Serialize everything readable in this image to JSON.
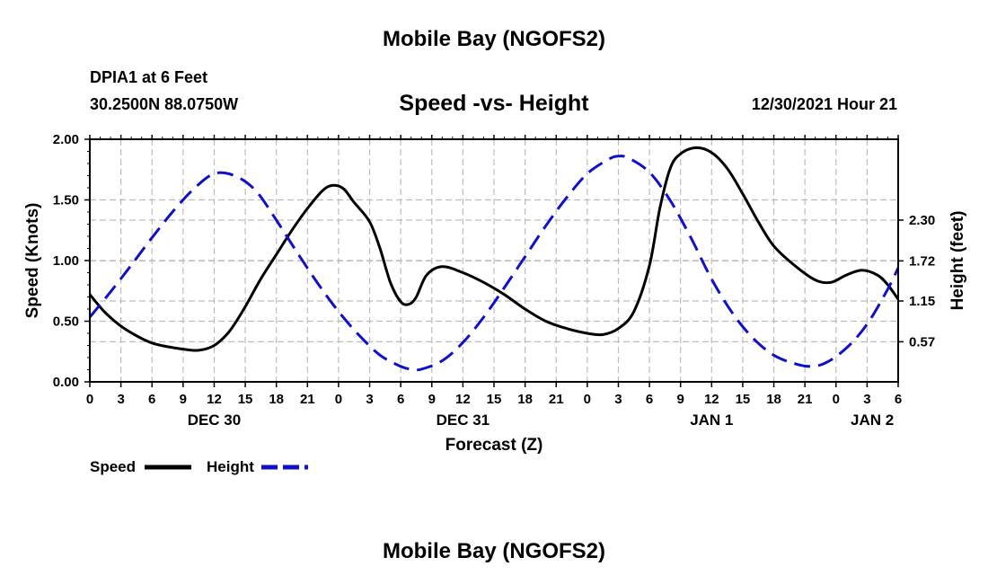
{
  "page": {
    "title_top": "Mobile Bay (NGOFS2)",
    "title_bottom": "Mobile Bay (NGOFS2)",
    "station": "DPIA1 at 6 Feet",
    "coordinates": "30.2500N  88.0750W",
    "subtitle": "Speed -vs- Height",
    "datetime": "12/30/2021 Hour 21"
  },
  "chart_data": {
    "type": "line",
    "title": "Speed -vs- Height",
    "xlabel": "Forecast (Z)",
    "ylabel": "Speed (Knots)",
    "y2label": "Height (feet)",
    "xlim": [
      0,
      78
    ],
    "ylim": [
      0,
      2.0
    ],
    "y2lim": [
      0,
      3.45
    ],
    "x_ticks": [
      0,
      3,
      6,
      9,
      12,
      15,
      18,
      21,
      24,
      27,
      30,
      33,
      36,
      39,
      42,
      45,
      48,
      51,
      54,
      57,
      60,
      63,
      66,
      69,
      72,
      75,
      78
    ],
    "x_tick_labels": [
      "0",
      "3",
      "6",
      "9",
      "12",
      "15",
      "18",
      "21",
      "0",
      "3",
      "6",
      "9",
      "12",
      "15",
      "18",
      "21",
      "0",
      "3",
      "6",
      "9",
      "12",
      "15",
      "18",
      "21",
      "0",
      "3",
      "6"
    ],
    "date_labels": [
      {
        "x": 12,
        "label": "DEC 30"
      },
      {
        "x": 36,
        "label": "DEC 31"
      },
      {
        "x": 60,
        "label": "JAN 1"
      },
      {
        "x": 75.5,
        "label": "JAN 2"
      }
    ],
    "y_ticks": [
      0.0,
      0.5,
      1.0,
      1.5,
      2.0
    ],
    "y_tick_labels": [
      "0.00",
      "0.50",
      "1.00",
      "1.50",
      "2.00"
    ],
    "y2_ticks": [
      0.57,
      1.15,
      1.72,
      2.3
    ],
    "y2_tick_labels": [
      "0.57",
      "1.15",
      "1.72",
      "2.30"
    ],
    "grid": true,
    "legend": {
      "position": "bottom-left",
      "entries": [
        "Speed",
        "Height"
      ]
    },
    "series": [
      {
        "name": "Speed",
        "axis": "left",
        "color": "#000000",
        "dash": "solid",
        "points": [
          [
            0,
            0.72
          ],
          [
            1.5,
            0.57
          ],
          [
            3,
            0.46
          ],
          [
            4.5,
            0.38
          ],
          [
            6,
            0.32
          ],
          [
            7.5,
            0.29
          ],
          [
            9,
            0.27
          ],
          [
            10.5,
            0.26
          ],
          [
            12,
            0.3
          ],
          [
            13.5,
            0.42
          ],
          [
            15,
            0.62
          ],
          [
            16.5,
            0.85
          ],
          [
            18,
            1.05
          ],
          [
            19.5,
            1.25
          ],
          [
            21,
            1.43
          ],
          [
            22.5,
            1.58
          ],
          [
            23.5,
            1.62
          ],
          [
            24.5,
            1.59
          ],
          [
            25.5,
            1.48
          ],
          [
            27,
            1.32
          ],
          [
            28,
            1.1
          ],
          [
            29,
            0.82
          ],
          [
            30,
            0.66
          ],
          [
            30.8,
            0.64
          ],
          [
            31.5,
            0.7
          ],
          [
            32.5,
            0.88
          ],
          [
            34,
            0.95
          ],
          [
            36,
            0.9
          ],
          [
            38,
            0.82
          ],
          [
            40,
            0.72
          ],
          [
            42,
            0.6
          ],
          [
            44,
            0.5
          ],
          [
            46,
            0.44
          ],
          [
            48,
            0.4
          ],
          [
            49.5,
            0.39
          ],
          [
            51,
            0.44
          ],
          [
            52.5,
            0.58
          ],
          [
            54,
            0.96
          ],
          [
            55,
            1.43
          ],
          [
            56,
            1.76
          ],
          [
            57,
            1.88
          ],
          [
            58.5,
            1.93
          ],
          [
            60,
            1.89
          ],
          [
            61.5,
            1.76
          ],
          [
            63,
            1.55
          ],
          [
            64.5,
            1.32
          ],
          [
            66,
            1.12
          ],
          [
            68,
            0.96
          ],
          [
            70,
            0.84
          ],
          [
            71.5,
            0.82
          ],
          [
            73,
            0.88
          ],
          [
            74.5,
            0.92
          ],
          [
            76,
            0.88
          ],
          [
            77,
            0.8
          ],
          [
            78,
            0.68
          ]
        ]
      },
      {
        "name": "Height",
        "axis": "right",
        "color": "#1010c8",
        "dash": "dashed",
        "points": [
          [
            0,
            0.92
          ],
          [
            2,
            1.28
          ],
          [
            4,
            1.66
          ],
          [
            6,
            2.05
          ],
          [
            8,
            2.42
          ],
          [
            10,
            2.74
          ],
          [
            12,
            2.96
          ],
          [
            14,
            2.93
          ],
          [
            16,
            2.72
          ],
          [
            18,
            2.3
          ],
          [
            20,
            1.84
          ],
          [
            22,
            1.4
          ],
          [
            24,
            1.0
          ],
          [
            26,
            0.66
          ],
          [
            28,
            0.38
          ],
          [
            30,
            0.22
          ],
          [
            31,
            0.18
          ],
          [
            32,
            0.18
          ],
          [
            34,
            0.3
          ],
          [
            36,
            0.56
          ],
          [
            38,
            0.92
          ],
          [
            40,
            1.34
          ],
          [
            42,
            1.78
          ],
          [
            44,
            2.22
          ],
          [
            46,
            2.62
          ],
          [
            48,
            2.96
          ],
          [
            50,
            3.16
          ],
          [
            51,
            3.21
          ],
          [
            52,
            3.18
          ],
          [
            54,
            2.98
          ],
          [
            56,
            2.58
          ],
          [
            58,
            2.05
          ],
          [
            60,
            1.46
          ],
          [
            62,
            0.98
          ],
          [
            64,
            0.62
          ],
          [
            66,
            0.38
          ],
          [
            68,
            0.26
          ],
          [
            69.5,
            0.22
          ],
          [
            71,
            0.27
          ],
          [
            73,
            0.48
          ],
          [
            75,
            0.82
          ],
          [
            77,
            1.32
          ],
          [
            78,
            1.62
          ]
        ]
      }
    ]
  }
}
